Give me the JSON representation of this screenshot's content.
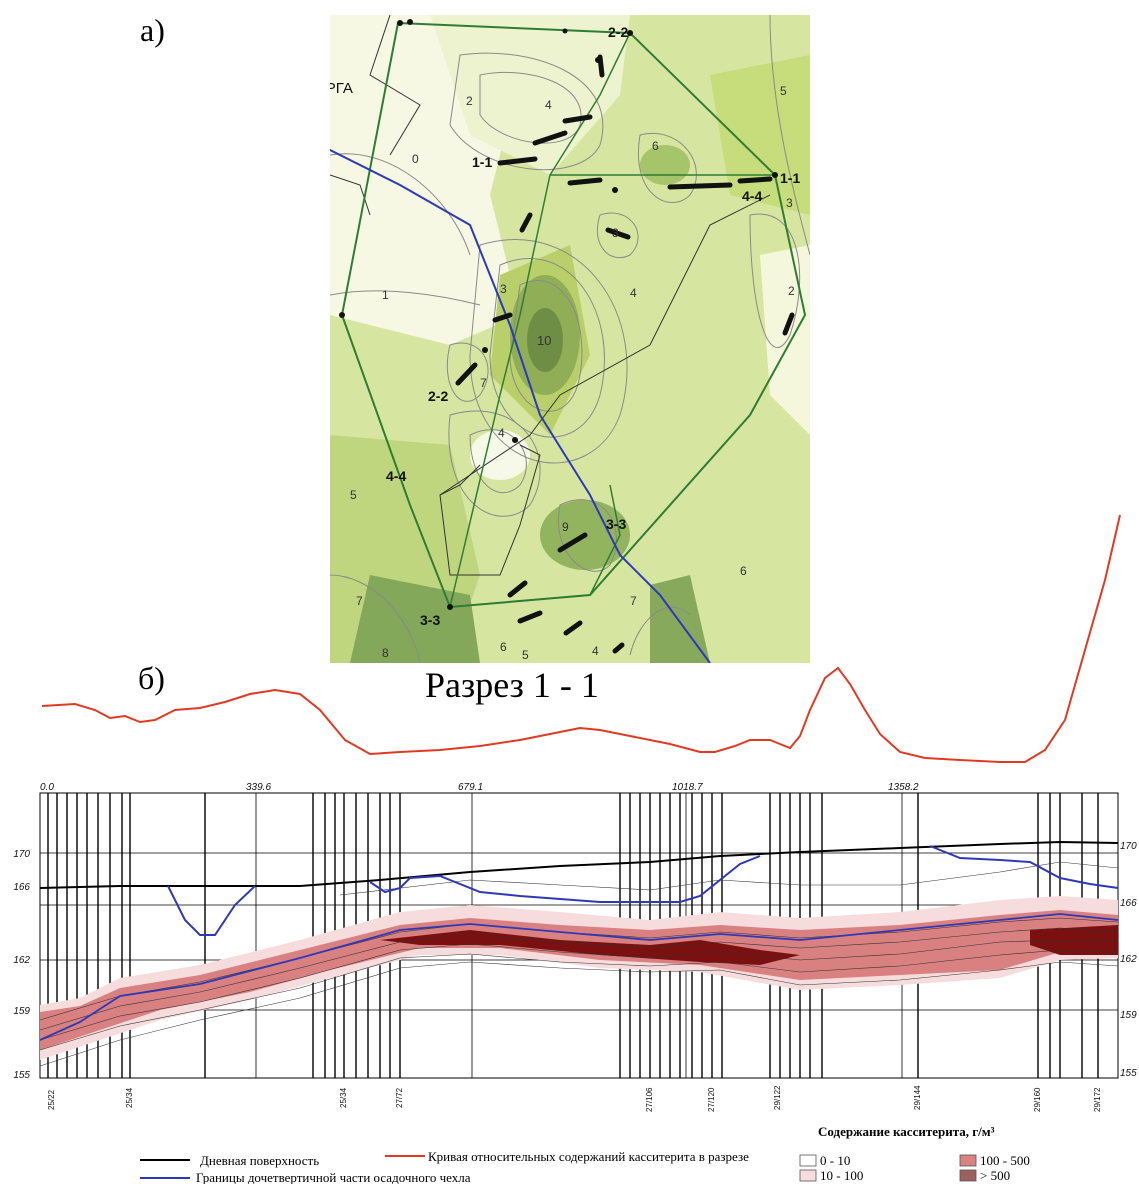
{
  "panel_a_label": "а)",
  "panel_b_label": "б)",
  "section_title": "Разрез 1 - 1",
  "map": {
    "town_label": "ПЕРГА",
    "section_labels": [
      "2-2",
      "1-1",
      "1-1",
      "4-4",
      "2-2",
      "4-4",
      "3-3",
      "3-3"
    ],
    "contour_labels": [
      "0",
      "1",
      "2",
      "2",
      "3",
      "3",
      "3",
      "4",
      "4",
      "4",
      "5",
      "5",
      "6",
      "6",
      "7",
      "7",
      "7",
      "8",
      "10",
      "9",
      "6",
      "5",
      "4"
    ]
  },
  "profile": {
    "distance_labels": [
      "0.0",
      "339.6",
      "679.1",
      "1018.7",
      "1358.2"
    ],
    "elevation_labels_left": [
      "170",
      "166",
      "162",
      "159",
      "155"
    ],
    "elevation_labels_right": [
      "170",
      "166",
      "162",
      "159",
      "155"
    ],
    "borehole_labels": [
      "25/22",
      "25/34",
      "25/34",
      "27/72",
      "27/106",
      "27/120",
      "29/122",
      "29/144",
      "29/160",
      "29/172"
    ]
  },
  "legend": {
    "surface": "Дневная поверхность",
    "curve": "Кривая относительных содержаний касситерита в разрезе",
    "boundary": "Границы дочетвертичной части осадочного чехла",
    "content_title": "Содержание касситерита, г/м³",
    "classes": [
      "0 - 10",
      "10 - 100",
      "100 - 500",
      "> 500"
    ]
  },
  "colors": {
    "surface": "#000000",
    "curve": "#e03a22",
    "boundary": "#2e39b8",
    "map_line": "#2f7d33",
    "class_0_10": "#ffffff",
    "class_10_100": "#f6dcdc",
    "class_100_500": "#d98080",
    "class_500": "#9c6060"
  }
}
